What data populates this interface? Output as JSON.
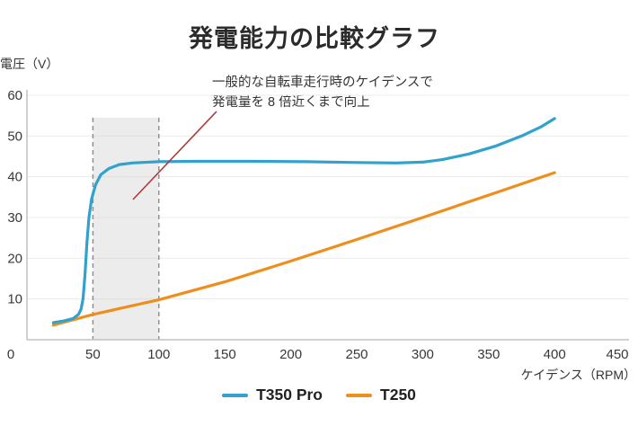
{
  "chart_data": {
    "type": "line",
    "title": "発電能力の比較グラフ",
    "xlabel": "ケイデンス（RPM）",
    "ylabel": "電圧（V）",
    "xlim": [
      0,
      450
    ],
    "ylim": [
      0,
      60
    ],
    "xticks": [
      0,
      50,
      100,
      150,
      200,
      250,
      300,
      350,
      400,
      450
    ],
    "yticks": [
      10,
      20,
      30,
      40,
      50,
      60
    ],
    "grid": "horizontal",
    "legend_position": "bottom-center",
    "highlight_band": {
      "x_from": 50,
      "x_to": 100
    },
    "annotation": {
      "lines": [
        "一般的な自転車走行時のケイデンスで",
        "発電量を 8 倍近くまで向上"
      ],
      "pointer_color": "#AC3A38"
    },
    "series": [
      {
        "name": "T350 Pro",
        "color": "#31A2CB",
        "points": [
          [
            20,
            4.2
          ],
          [
            28,
            4.6
          ],
          [
            35,
            5.2
          ],
          [
            39,
            6.2
          ],
          [
            41,
            7.5
          ],
          [
            42.5,
            10
          ],
          [
            44,
            16
          ],
          [
            45.5,
            24
          ],
          [
            47,
            30
          ],
          [
            49,
            34.5
          ],
          [
            52,
            38
          ],
          [
            56,
            40.5
          ],
          [
            62,
            42
          ],
          [
            70,
            43
          ],
          [
            80,
            43.4
          ],
          [
            100,
            43.7
          ],
          [
            130,
            43.8
          ],
          [
            170,
            43.8
          ],
          [
            210,
            43.7
          ],
          [
            250,
            43.5
          ],
          [
            280,
            43.4
          ],
          [
            300,
            43.6
          ],
          [
            315,
            44.2
          ],
          [
            335,
            45.6
          ],
          [
            355,
            47.5
          ],
          [
            375,
            50
          ],
          [
            390,
            52.3
          ],
          [
            400,
            54.3
          ]
        ]
      },
      {
        "name": "T250",
        "color": "#EE8F1D",
        "points": [
          [
            20,
            3.6
          ],
          [
            50,
            6.2
          ],
          [
            100,
            9.8
          ],
          [
            150,
            14.2
          ],
          [
            200,
            19.3
          ],
          [
            250,
            24.6
          ],
          [
            300,
            30
          ],
          [
            350,
            35.5
          ],
          [
            400,
            41
          ]
        ]
      }
    ]
  }
}
